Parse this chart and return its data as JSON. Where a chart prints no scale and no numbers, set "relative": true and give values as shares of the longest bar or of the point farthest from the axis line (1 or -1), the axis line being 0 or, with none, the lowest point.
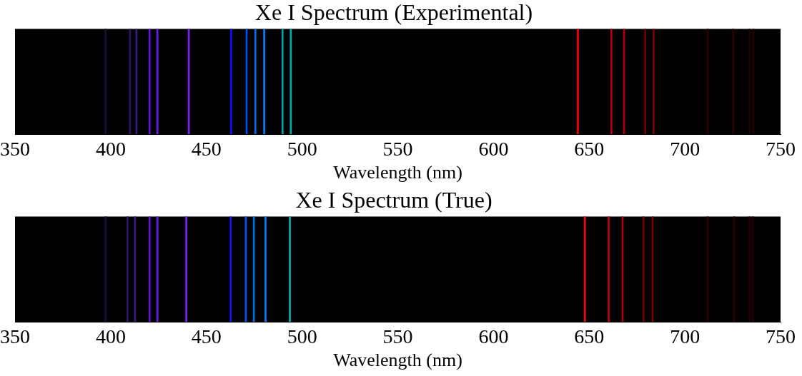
{
  "chart_data": [
    {
      "type": "bar",
      "title": "Xe I Spectrum (Experimental)",
      "xlabel": "Wavelength (nm)",
      "relative": true,
      "tick_labels": "x",
      "grid": false,
      "legend": false,
      "x": [
        397.3,
        410.1,
        413.5,
        420.3,
        424.4,
        440.8,
        462.9,
        471.0,
        475.6,
        480.2,
        489.8,
        494.1,
        644.1,
        661.6,
        668.2,
        679.3,
        683.7,
        712.0,
        725.2,
        733.8,
        735.8
      ],
      "values": [
        1,
        1,
        1,
        1,
        1,
        1,
        1,
        1,
        1,
        1,
        1,
        1,
        1,
        1,
        1,
        1,
        1,
        1,
        1,
        1,
        1
      ],
      "colors": [
        "#1c0c38",
        "#301466",
        "#3c1a88",
        "#6a10e0",
        "#7018f0",
        "#8020ff",
        "#1010ff",
        "#0050ff",
        "#0070f0",
        "#0080ff",
        "#00a0b0",
        "#00b0b0",
        "#ff0000",
        "#c00000",
        "#b00000",
        "#700000",
        "#800000",
        "#2a0000",
        "#300000",
        "#200000",
        "#200000"
      ],
      "xlim": [
        350,
        750
      ],
      "xticks": [
        350,
        400,
        450,
        500,
        550,
        600,
        650,
        700,
        750
      ]
    },
    {
      "type": "bar",
      "title": "Xe I Spectrum (True)",
      "xlabel": "Wavelength (nm)",
      "relative": true,
      "tick_labels": "x",
      "grid": false,
      "legend": false,
      "x": [
        397.3,
        408.8,
        412.7,
        420.3,
        424.4,
        439.5,
        462.7,
        470.6,
        474.8,
        480.9,
        493.6,
        647.8,
        660.2,
        667.5,
        678.4,
        683.1,
        712.0,
        725.8,
        733.8,
        735.5
      ],
      "values": [
        1,
        1,
        1,
        1,
        1,
        1,
        1,
        1,
        1,
        1,
        1,
        1,
        1,
        1,
        1,
        1,
        1,
        1,
        1,
        1
      ],
      "colors": [
        "#1c0c38",
        "#301466",
        "#3c1a88",
        "#6a10e0",
        "#7018f0",
        "#8020ff",
        "#1010ff",
        "#0050ff",
        "#0070f0",
        "#0080ff",
        "#00b4b4",
        "#ff0000",
        "#c00000",
        "#b00000",
        "#700000",
        "#800000",
        "#2a0000",
        "#300000",
        "#200000",
        "#200000"
      ],
      "xlim": [
        350,
        750
      ],
      "xticks": [
        350,
        400,
        450,
        500,
        550,
        600,
        650,
        700,
        750
      ]
    }
  ]
}
